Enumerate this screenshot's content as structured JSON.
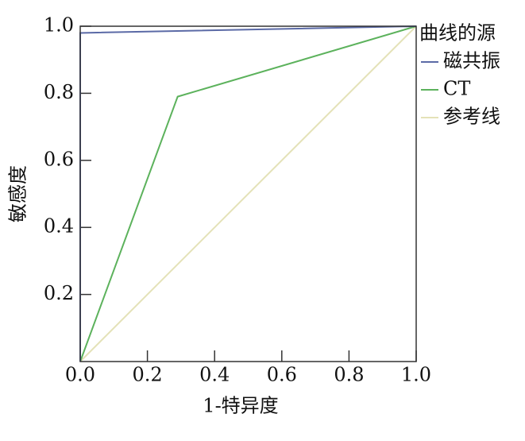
{
  "chart_data": {
    "type": "line",
    "x_label": "1-特异度",
    "y_label": "敏感度",
    "legend_title": "曲线的源",
    "xlim": [
      0,
      1
    ],
    "ylim": [
      0,
      1
    ],
    "xticks": [
      {
        "value": 0,
        "label": "0.0"
      },
      0.2,
      0.4,
      0.6,
      0.8,
      {
        "value": 1,
        "label": "1.0"
      }
    ],
    "yticks": [
      0.2,
      0.4,
      0.6,
      0.8,
      {
        "value": 1,
        "label": "1.0"
      }
    ],
    "series": [
      {
        "name": "磁共振",
        "color": "#5b6aa6",
        "x": [
          0,
          0,
          1
        ],
        "values": [
          0,
          0.98,
          1
        ]
      },
      {
        "name": "CT",
        "color": "#5cb25c",
        "x": [
          0,
          0.29,
          1
        ],
        "values": [
          0,
          0.79,
          1
        ]
      },
      {
        "name": "参考线",
        "color": "#e4e2b8",
        "x": [
          0,
          1
        ],
        "values": [
          0,
          1
        ]
      }
    ]
  }
}
